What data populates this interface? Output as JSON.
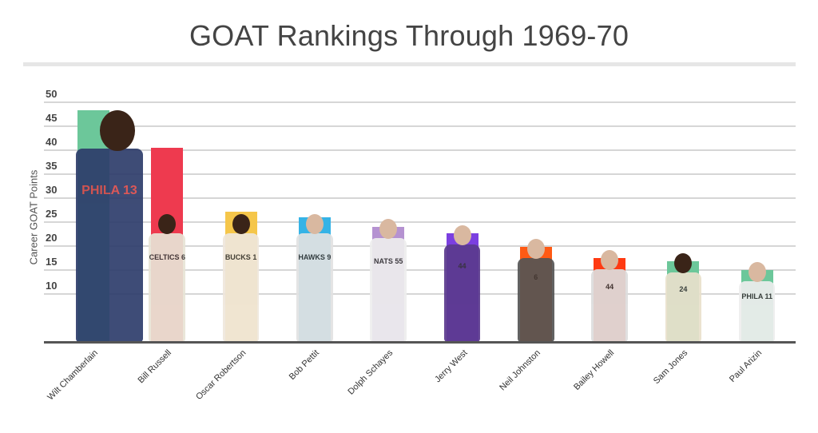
{
  "title": "GOAT Rankings Through 1969-70",
  "chart_data": {
    "type": "bar",
    "title": "GOAT Rankings Through 1969-70",
    "xlabel": "",
    "ylabel": "Career GOAT Points",
    "ylim": [
      0,
      50
    ],
    "yticks": [
      10,
      15,
      20,
      25,
      30,
      35,
      40,
      45,
      50
    ],
    "grid": true,
    "legend": "none",
    "categories": [
      "Wilt Chamberlain",
      "Bill Russell",
      "Oscar Robertson",
      "Bob Pettit",
      "Dolph Schayes",
      "Jerry West",
      "Neil Johnston",
      "Bailey Howell",
      "Sam Jones",
      "Paul Arizin"
    ],
    "values": [
      48.3,
      40.5,
      27.2,
      26.0,
      24.0,
      22.7,
      19.8,
      17.5,
      16.8,
      15.0
    ],
    "colors": [
      "#6cc79a",
      "#ee3a4f",
      "#f5c64a",
      "#35b3e6",
      "#b592d1",
      "#7b3fe0",
      "#ff5a14",
      "#ff3a12",
      "#6cc79a",
      "#6cc79a"
    ],
    "annotations": "Player photos overlaid on bars"
  },
  "players": [
    {
      "name": "Wilt Chamberlain",
      "jersey": "PHILA 13",
      "jersey_color": "#2e3d6b"
    },
    {
      "name": "Bill Russell",
      "jersey": "CELTICS 6",
      "jersey_color": "#e8e4d6"
    },
    {
      "name": "Oscar Robertson",
      "jersey": "BUCKS 1",
      "jersey_color": "#efe7dc"
    },
    {
      "name": "Bob Pettit",
      "jersey": "HAWKS 9",
      "jersey_color": "#e2e2e2"
    },
    {
      "name": "Dolph Schayes",
      "jersey": "NATS 55",
      "jersey_color": "#eeeeee"
    },
    {
      "name": "Jerry West",
      "jersey": "44",
      "jersey_color": "#5b3a8e"
    },
    {
      "name": "Neil Johnston",
      "jersey": "6",
      "jersey_color": "#555555"
    },
    {
      "name": "Bailey Howell",
      "jersey": "44",
      "jersey_color": "#dddddd"
    },
    {
      "name": "Sam Jones",
      "jersey": "24",
      "jersey_color": "#e9e1cc"
    },
    {
      "name": "Paul Arizin",
      "jersey": "PHILA 11",
      "jersey_color": "#eeeeee"
    }
  ]
}
